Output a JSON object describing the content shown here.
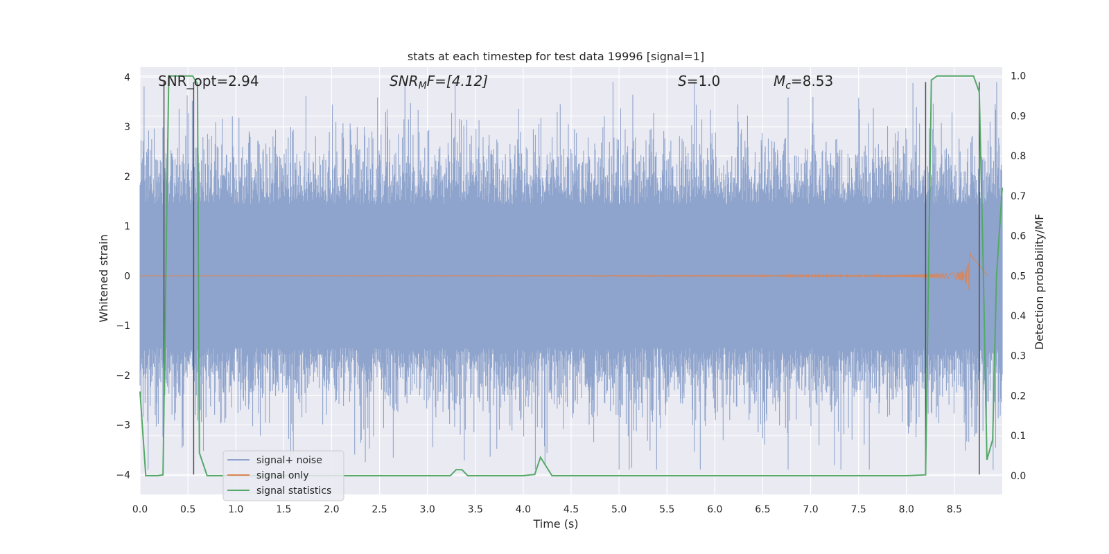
{
  "chart_data": {
    "type": "line",
    "title": "stats at each timestep for test data 19996 [signal=1]",
    "xlabel": "Time (s)",
    "ylabel_left": "Whitened strain",
    "ylabel_right": "Detection probability/MF",
    "xlim": [
      0.0,
      9.0
    ],
    "ylim_left": [
      -4.4,
      4.2
    ],
    "ylim_right": [
      -0.047,
      1.022
    ],
    "x_ticks": [
      0.0,
      0.5,
      1.0,
      1.5,
      2.0,
      2.5,
      3.0,
      3.5,
      4.0,
      4.5,
      5.0,
      5.5,
      6.0,
      6.5,
      7.0,
      7.5,
      8.0,
      8.5
    ],
    "x_tick_labels": [
      "0.0",
      "0.5",
      "1.0",
      "1.5",
      "2.0",
      "2.5",
      "3.0",
      "3.5",
      "4.0",
      "4.5",
      "5.0",
      "5.5",
      "6.0",
      "6.5",
      "7.0",
      "7.5",
      "8.0",
      "8.5"
    ],
    "y_left_ticks": [
      4,
      3,
      2,
      1,
      0,
      -1,
      -2,
      -3,
      -4
    ],
    "y_left_tick_labels": [
      "4",
      "3",
      "2",
      "1",
      "0",
      "−1",
      "−2",
      "−3",
      "−4"
    ],
    "y_right_ticks": [
      1.0,
      0.9,
      0.8,
      0.7,
      0.6,
      0.5,
      0.4,
      0.3,
      0.2,
      0.1,
      0.0
    ],
    "y_right_tick_labels": [
      "1.0",
      "0.9",
      "0.8",
      "0.7",
      "0.6",
      "0.5",
      "0.4",
      "0.3",
      "0.2",
      "0.1",
      "0.0"
    ],
    "grid": true,
    "legend_placement": "lower-left",
    "annotations": {
      "snr_opt": "SNR_opt=2.94",
      "snr_mf_main": "SNR",
      "snr_mf_sub": "M",
      "snr_mf_rest": "F=[4.12]",
      "s_main": "S",
      "s_rest": "=1.0",
      "mc_main": "M",
      "mc_sub": "c",
      "mc_rest": "=8.53"
    },
    "noise_envelope": {
      "x_range": [
        0.0,
        9.0
      ],
      "typical_amplitude": 1.6,
      "peak_amplitude": 3.9
    },
    "series": [
      {
        "name": "signal+ noise",
        "color": "#8fa4cc",
        "axis": "left",
        "representation": "dense noisy whitened strain"
      },
      {
        "name": "signal only",
        "color": "#dd8452",
        "axis": "left",
        "chirp_end_time": 8.67,
        "chirp_peak_amplitude": 0.5
      },
      {
        "name": "signal statistics",
        "color": "#55a868",
        "axis": "right",
        "x": [
          0.0,
          0.06,
          0.18,
          0.24,
          0.3,
          0.55,
          0.6,
          0.62,
          0.7,
          1.0,
          2.0,
          3.0,
          3.24,
          3.3,
          3.36,
          3.42,
          3.6,
          4.0,
          4.12,
          4.18,
          4.3,
          5.0,
          6.0,
          7.0,
          8.0,
          8.2,
          8.26,
          8.32,
          8.4,
          8.7,
          8.76,
          8.8,
          8.84,
          8.9,
          8.94,
          9.0
        ],
        "y": [
          0.21,
          0.0,
          0.0,
          0.002,
          1.0,
          1.0,
          0.98,
          0.057,
          0.0,
          0.0,
          0.0,
          0.0,
          0.0,
          0.015,
          0.015,
          0.0,
          0.0,
          0.0,
          0.003,
          0.046,
          0.0,
          0.0,
          0.0,
          0.0,
          0.0,
          0.002,
          0.99,
          1.0,
          1.0,
          1.0,
          0.96,
          0.54,
          0.04,
          0.09,
          0.5,
          0.72
        ]
      }
    ],
    "vertical_markers": [
      {
        "x": 0.25,
        "y_top": 3.9,
        "y_bottom": -2.8
      },
      {
        "x": 0.56,
        "y_top": 3.9,
        "y_bottom": -4.0
      },
      {
        "x": 8.2,
        "y_top": 3.9,
        "y_bottom": -4.0
      },
      {
        "x": 8.76,
        "y_top": 3.9,
        "y_bottom": -4.0
      }
    ],
    "colors": {
      "plot_background": "#eaeaf2",
      "grid": "#ffffff",
      "markers": "#4d4d4d"
    }
  }
}
